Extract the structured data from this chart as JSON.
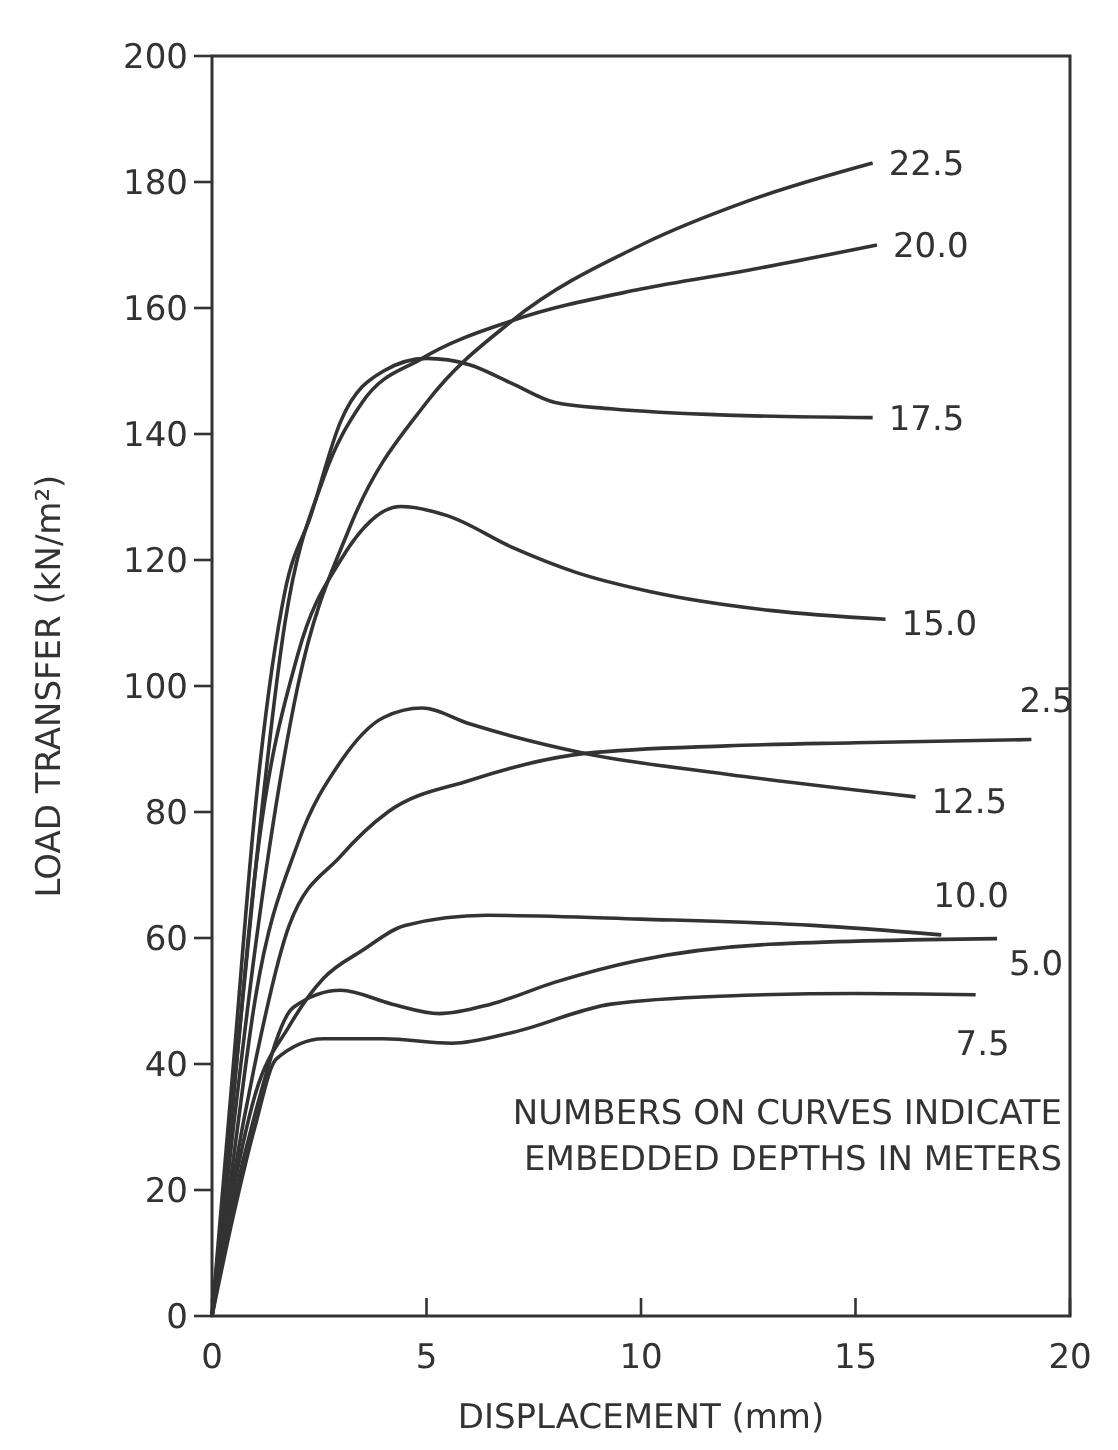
{
  "chart_data": {
    "type": "line",
    "xlabel": "DISPLACEMENT (mm)",
    "ylabel": "LOAD TRANSFER (kN/m²)",
    "xlim": [
      0,
      20
    ],
    "xticks": [
      0,
      5,
      10,
      15,
      20
    ],
    "ylim": [
      0,
      200
    ],
    "yticks": [
      0,
      20,
      40,
      60,
      80,
      100,
      120,
      140,
      160,
      180,
      200
    ],
    "grid": false,
    "marker": "none",
    "line_style": "solid",
    "series": [
      {
        "name": "22.5",
        "color": "#333333",
        "x": [
          0,
          0.5,
          1,
          2,
          3.2,
          5,
          7,
          10,
          12.5,
          15.4
        ],
        "values": [
          0,
          30,
          58,
          100,
          125,
          145,
          158,
          170,
          177,
          183
        ]
      },
      {
        "name": "20.0",
        "color": "#333333",
        "x": [
          0,
          0.5,
          1,
          1.7,
          2.6,
          3.5,
          4.9,
          7,
          10,
          12.5,
          15.5
        ],
        "values": [
          0,
          35,
          70,
          110,
          133,
          145,
          152,
          158,
          163,
          166,
          170
        ]
      },
      {
        "name": "17.5",
        "color": "#333333",
        "x": [
          0,
          0.5,
          1,
          1.7,
          2.3,
          3,
          4,
          5,
          6,
          7,
          8,
          9.3,
          12,
          15.4
        ],
        "values": [
          0,
          40,
          80,
          115,
          127,
          142,
          150,
          152,
          151,
          148,
          145,
          144,
          143,
          142.6
        ]
      },
      {
        "name": "15.0",
        "color": "#333333",
        "x": [
          0,
          0.5,
          1,
          2,
          3,
          4.4,
          5.5,
          7,
          8.5,
          10.2,
          13,
          15.7
        ],
        "values": [
          0,
          35,
          70,
          105,
          120,
          128.5,
          127,
          122,
          118,
          115,
          112,
          110.6
        ]
      },
      {
        "name": "12.5",
        "color": "#333333",
        "x": [
          0,
          0.5,
          1,
          2,
          3,
          4,
          4.9,
          6,
          8.7,
          12,
          16.4
        ],
        "values": [
          0,
          25,
          50,
          75,
          88,
          95,
          96.5,
          94,
          89.3,
          86,
          82.4
        ]
      },
      {
        "name": "2.5",
        "color": "#333333",
        "x": [
          0,
          0.5,
          1,
          1.8,
          3,
          4.1,
          6,
          8.7,
          12,
          15,
          19.1
        ],
        "values": [
          0,
          22,
          40,
          62,
          73,
          80,
          85,
          89.3,
          90.5,
          91,
          91.5
        ]
      },
      {
        "name": "10.0",
        "color": "#333333",
        "x": [
          0,
          0.5,
          1,
          1.8,
          2.6,
          3.5,
          4.5,
          6.4,
          10,
          14,
          17
        ],
        "values": [
          0,
          20,
          35,
          46,
          53.6,
          58,
          62,
          63.6,
          63,
          62,
          60.5
        ]
      },
      {
        "name": "5.0",
        "color": "#333333",
        "x": [
          0,
          0.5,
          1,
          1.9,
          3,
          4.2,
          5.3,
          6.5,
          8,
          9.9,
          13,
          18.3
        ],
        "values": [
          0,
          18,
          32,
          49,
          51.7,
          49.5,
          48,
          49.5,
          53,
          56.4,
          59,
          59.9
        ]
      },
      {
        "name": "7.5",
        "color": "#333333",
        "x": [
          0,
          0.5,
          1,
          1.5,
          2.6,
          4,
          5.6,
          7,
          9.3,
          12,
          15,
          17.8
        ],
        "values": [
          0,
          16,
          30,
          40.8,
          44,
          44,
          43.3,
          45,
          49.5,
          50.8,
          51.2,
          51
        ]
      }
    ],
    "annotations": [
      "NUMBERS ON CURVES INDICATE",
      "EMBEDDED DEPTHS IN METERS"
    ]
  }
}
